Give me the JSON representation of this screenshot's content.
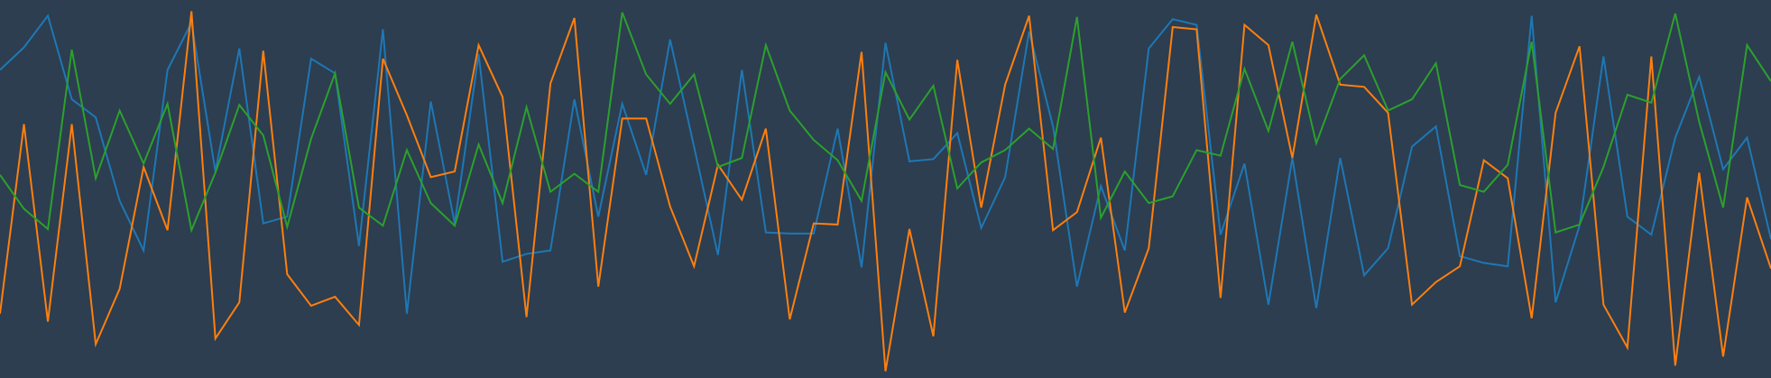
{
  "chart_data": {
    "type": "line",
    "background": "#2c3e50",
    "ylim": [
      0,
      335
    ],
    "series": [
      {
        "color": "#1f77b4",
        "values": [
          273,
          293,
          321,
          247,
          231,
          157,
          113,
          273,
          315,
          183,
          292,
          137,
          143,
          283,
          270,
          117,
          309,
          57,
          245,
          137,
          287,
          103,
          110,
          113,
          247,
          143,
          243,
          180,
          300,
          205,
          109,
          273,
          129,
          128,
          128,
          221,
          98,
          297,
          192,
          194,
          217,
          133,
          178,
          307,
          223,
          81,
          170,
          113,
          292,
          318,
          313,
          127,
          190,
          65,
          195,
          62,
          195,
          91,
          115,
          205,
          223,
          108,
          102,
          99,
          321,
          67,
          135,
          285,
          143,
          127,
          213,
          267,
          185,
          213,
          123
        ]
      },
      {
        "color": "#ff7f0e",
        "values": [
          57,
          225,
          50,
          225,
          30,
          79,
          187,
          131,
          325,
          35,
          67,
          290,
          92,
          64,
          72,
          47,
          283,
          233,
          178,
          183,
          295,
          249,
          54,
          261,
          319,
          81,
          230,
          230,
          152,
          99,
          189,
          158,
          221,
          52,
          137,
          136,
          289,
          6,
          132,
          37,
          282,
          151,
          260,
          321,
          131,
          147,
          213,
          58,
          115,
          311,
          309,
          71,
          313,
          295,
          195,
          322,
          260,
          258,
          235,
          65,
          85,
          99,
          193,
          177,
          53,
          235,
          294,
          65,
          27,
          285,
          11,
          182,
          19,
          160,
          97
        ]
      },
      {
        "color": "#2ca02c",
        "values": [
          180,
          150,
          132,
          291,
          177,
          237,
          190,
          243,
          131,
          182,
          242,
          215,
          134,
          212,
          270,
          151,
          135,
          202,
          155,
          135,
          207,
          155,
          240,
          165,
          181,
          165,
          324,
          269,
          243,
          269,
          187,
          195,
          295,
          237,
          211,
          193,
          157,
          271,
          229,
          259,
          168,
          191,
          202,
          221,
          203,
          320,
          142,
          183,
          155,
          161,
          202,
          197,
          274,
          219,
          298,
          208,
          265,
          286,
          237,
          247,
          279,
          171,
          165,
          189,
          298,
          129,
          136,
          187,
          251,
          244,
          323,
          227,
          151,
          295,
          263
        ]
      }
    ]
  }
}
